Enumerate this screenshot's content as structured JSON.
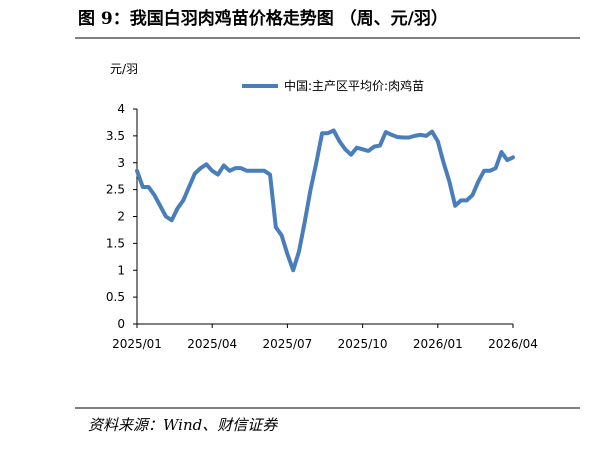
{
  "chart_data": {
    "type": "line",
    "title": "图 9：我国白羽肉鸡苗价格走势图 （周、元/羽）",
    "y_label": "元/羽",
    "source": "资料来源：Wind、财信证券",
    "categories": [
      "2025/01",
      null,
      null,
      null,
      null,
      null,
      null,
      null,
      null,
      null,
      null,
      null,
      null,
      "2025/04",
      null,
      null,
      null,
      null,
      null,
      null,
      null,
      null,
      null,
      null,
      null,
      null,
      "2025/07",
      null,
      null,
      null,
      null,
      null,
      null,
      null,
      null,
      null,
      null,
      null,
      null,
      "2025/10",
      null,
      null,
      null,
      null,
      null,
      null,
      null,
      null,
      null,
      null,
      null,
      null,
      "2026/01",
      null,
      null,
      null,
      null,
      null,
      null,
      null,
      null,
      null,
      null,
      null,
      null,
      "2026/04"
    ],
    "series": [
      {
        "name": "中国:主产区平均价:肉鸡苗",
        "color": "#4a7ebb",
        "values": [
          2.85,
          2.55,
          2.55,
          2.4,
          2.2,
          2.0,
          1.93,
          2.15,
          2.3,
          2.55,
          2.8,
          2.9,
          2.97,
          2.85,
          2.78,
          2.95,
          2.85,
          2.9,
          2.9,
          2.85,
          2.85,
          2.85,
          2.85,
          2.78,
          1.8,
          1.65,
          1.3,
          1.0,
          1.35,
          1.9,
          2.5,
          3.0,
          3.55,
          3.55,
          3.6,
          3.4,
          3.25,
          3.15,
          3.28,
          3.25,
          3.22,
          3.3,
          3.32,
          3.57,
          3.52,
          3.48,
          3.47,
          3.47,
          3.5,
          3.52,
          3.5,
          3.58,
          3.4,
          3.0,
          2.65,
          2.2,
          2.3,
          2.3,
          2.4,
          2.65,
          2.85,
          2.85,
          2.9,
          3.2,
          3.05,
          3.1
        ]
      }
    ],
    "ylim": [
      0,
      4
    ],
    "yticks": [
      0,
      0.5,
      1,
      1.5,
      2,
      2.5,
      3,
      3.5,
      4
    ],
    "legend": "top"
  }
}
